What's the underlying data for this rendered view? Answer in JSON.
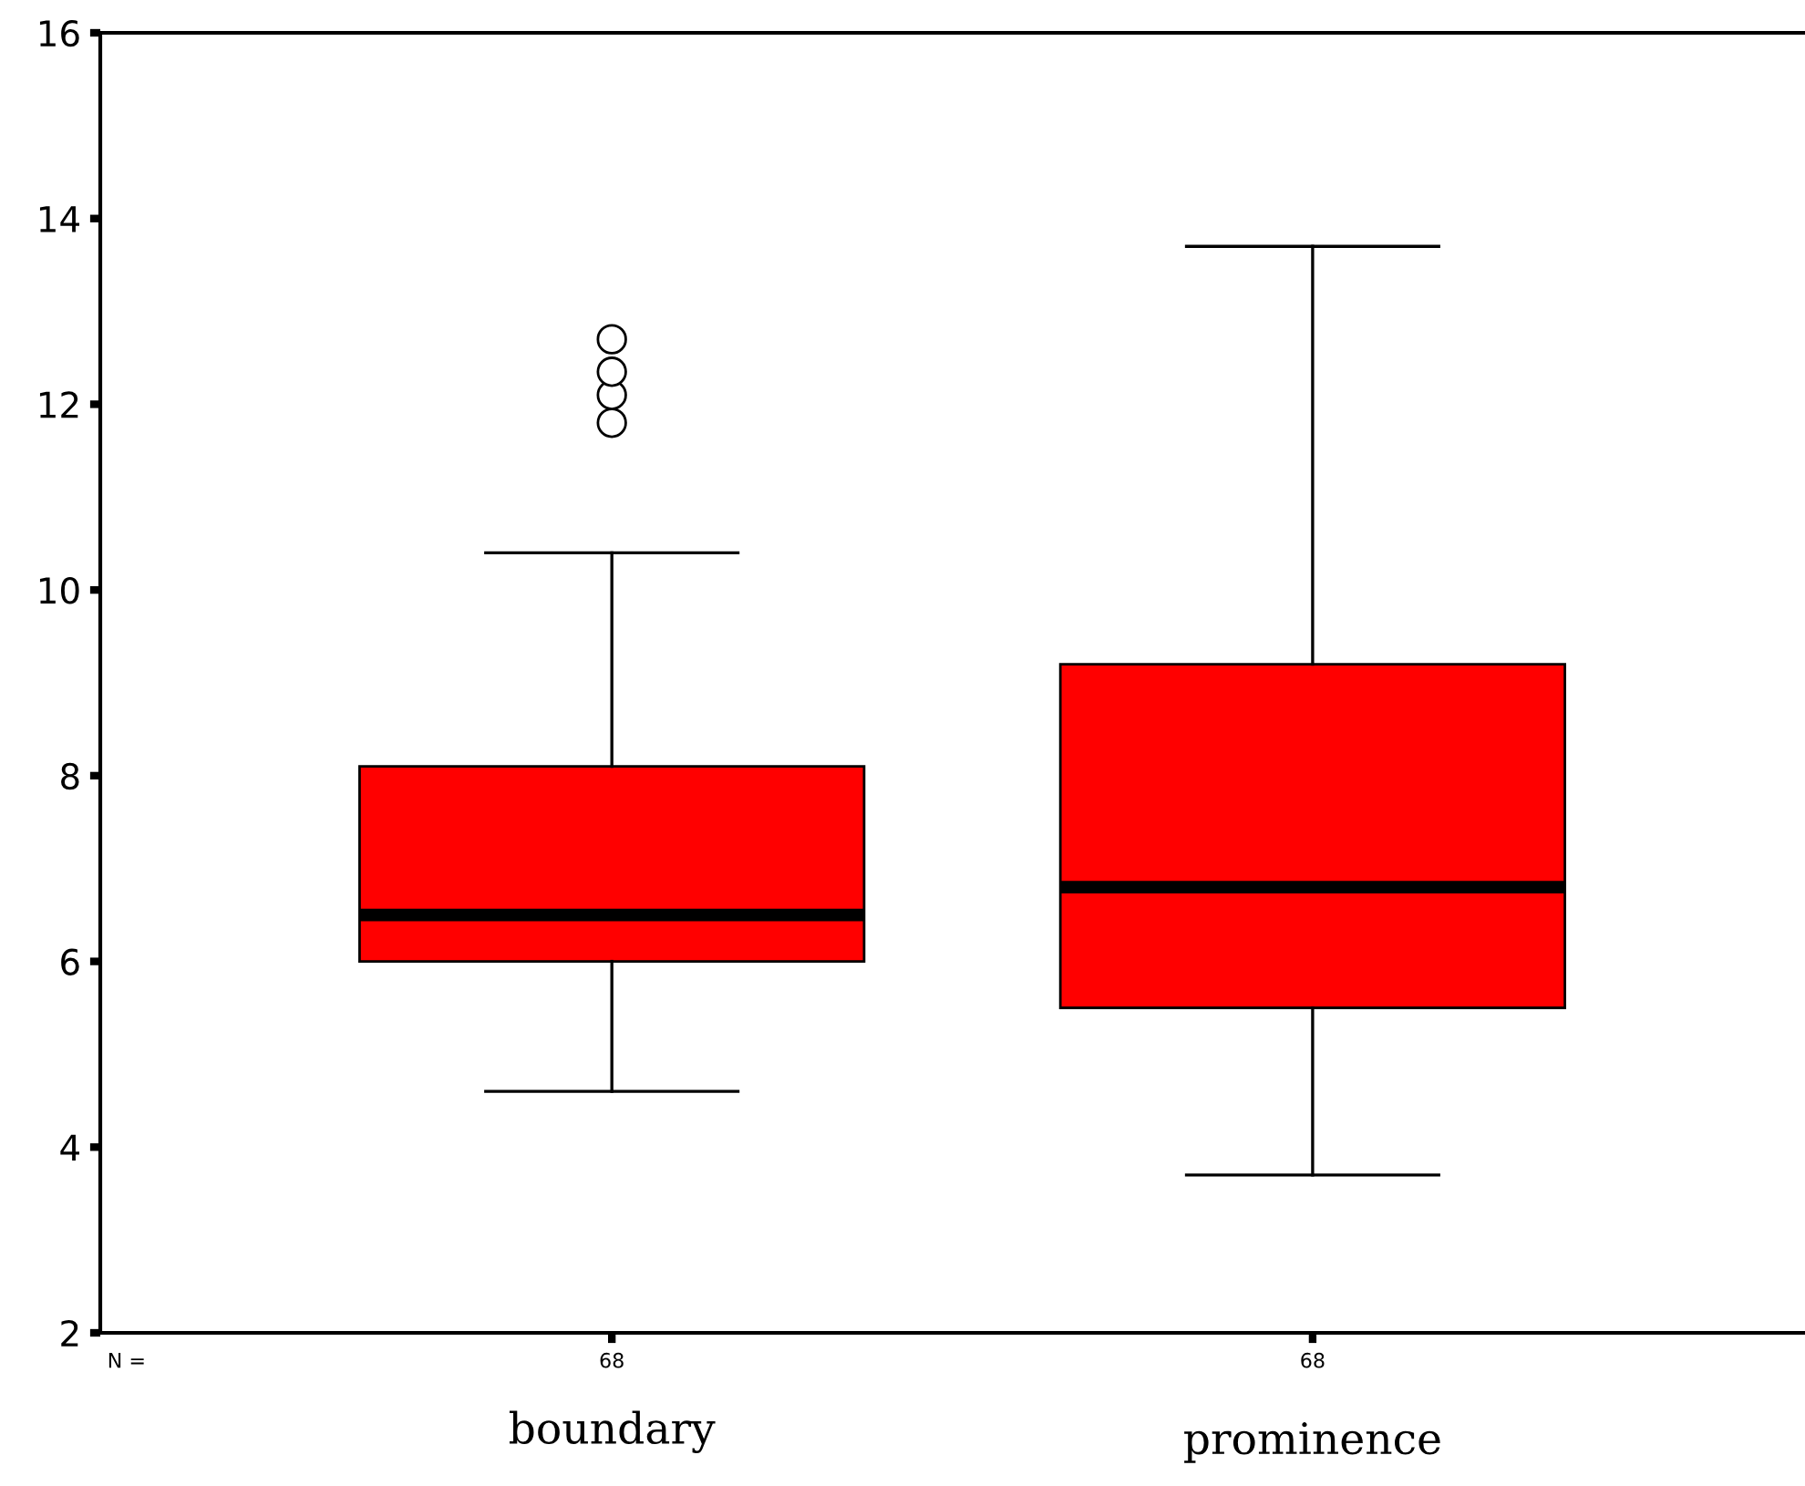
{
  "chart_data": {
    "type": "box",
    "categories": [
      "boundary",
      "prominence"
    ],
    "boxes": [
      {
        "low": 4.6,
        "q1": 6.0,
        "median": 6.5,
        "q3": 8.1,
        "high": 10.4,
        "outliers": [
          11.8,
          12.1,
          12.35,
          12.7
        ]
      },
      {
        "low": 3.7,
        "q1": 5.5,
        "median": 6.8,
        "q3": 9.2,
        "high": 13.7
      }
    ],
    "color": "#ff0000",
    "ylim": [
      2,
      16
    ],
    "yticks": [
      2,
      4,
      6,
      8,
      10,
      12,
      14,
      16
    ],
    "grid": false,
    "annotations": [
      "N =",
      "68",
      "68"
    ]
  }
}
